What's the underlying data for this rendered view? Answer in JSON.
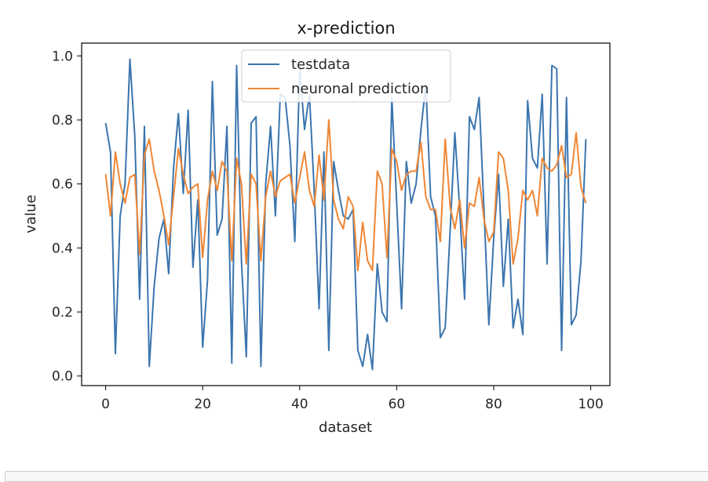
{
  "chart_data": {
    "type": "line",
    "title": "x-prediction",
    "xlabel": "dataset",
    "ylabel": "value",
    "xlim": [
      -4.95,
      103.95
    ],
    "ylim": [
      -0.03,
      1.04
    ],
    "xticks": [
      0,
      20,
      40,
      60,
      80,
      100
    ],
    "yticks": [
      0.0,
      0.2,
      0.4,
      0.6,
      0.8,
      1.0
    ],
    "xtick_labels": [
      "0",
      "20",
      "40",
      "60",
      "80",
      "100"
    ],
    "ytick_labels": [
      "0.0",
      "0.2",
      "0.4",
      "0.6",
      "0.8",
      "1.0"
    ],
    "grid": false,
    "legend_position": "top-center",
    "series": [
      {
        "name": "testdata",
        "color": "#3b75af",
        "x": [
          0,
          1,
          2,
          3,
          4,
          5,
          6,
          7,
          8,
          9,
          10,
          11,
          12,
          13,
          14,
          15,
          16,
          17,
          18,
          19,
          20,
          21,
          22,
          23,
          24,
          25,
          26,
          27,
          28,
          29,
          30,
          31,
          32,
          33,
          34,
          35,
          36,
          37,
          38,
          39,
          40,
          41,
          42,
          43,
          44,
          45,
          46,
          47,
          48,
          49,
          50,
          51,
          52,
          53,
          54,
          55,
          56,
          57,
          58,
          59,
          60,
          61,
          62,
          63,
          64,
          65,
          66,
          67,
          68,
          69,
          70,
          71,
          72,
          73,
          74,
          75,
          76,
          77,
          78,
          79,
          80,
          81,
          82,
          83,
          84,
          85,
          86,
          87,
          88,
          89,
          90,
          91,
          92,
          93,
          94,
          95,
          96,
          97,
          98,
          99
        ],
        "values": [
          0.79,
          0.7,
          0.07,
          0.5,
          0.6,
          0.99,
          0.75,
          0.24,
          0.78,
          0.03,
          0.28,
          0.43,
          0.49,
          0.32,
          0.65,
          0.82,
          0.57,
          0.83,
          0.34,
          0.55,
          0.09,
          0.3,
          0.92,
          0.44,
          0.49,
          0.78,
          0.04,
          0.97,
          0.36,
          0.06,
          0.79,
          0.81,
          0.03,
          0.6,
          0.78,
          0.5,
          0.88,
          0.87,
          0.72,
          0.42,
          0.96,
          0.77,
          0.88,
          0.58,
          0.21,
          0.7,
          0.08,
          0.67,
          0.58,
          0.5,
          0.49,
          0.52,
          0.08,
          0.03,
          0.13,
          0.02,
          0.35,
          0.2,
          0.17,
          0.87,
          0.54,
          0.21,
          0.67,
          0.54,
          0.6,
          0.77,
          0.91,
          0.56,
          0.5,
          0.12,
          0.15,
          0.45,
          0.76,
          0.52,
          0.24,
          0.81,
          0.77,
          0.87,
          0.52,
          0.16,
          0.43,
          0.63,
          0.28,
          0.49,
          0.15,
          0.24,
          0.13,
          0.86,
          0.68,
          0.65,
          0.88,
          0.35,
          0.97,
          0.96,
          0.08,
          0.87,
          0.16,
          0.19,
          0.36,
          0.74
        ]
      },
      {
        "name": "neuronal prediction",
        "color": "#ef8635",
        "x": [
          0,
          1,
          2,
          3,
          4,
          5,
          6,
          7,
          8,
          9,
          10,
          11,
          12,
          13,
          14,
          15,
          16,
          17,
          18,
          19,
          20,
          21,
          22,
          23,
          24,
          25,
          26,
          27,
          28,
          29,
          30,
          31,
          32,
          33,
          34,
          35,
          36,
          37,
          38,
          39,
          40,
          41,
          42,
          43,
          44,
          45,
          46,
          47,
          48,
          49,
          50,
          51,
          52,
          53,
          54,
          55,
          56,
          57,
          58,
          59,
          60,
          61,
          62,
          63,
          64,
          65,
          66,
          67,
          68,
          69,
          70,
          71,
          72,
          73,
          74,
          75,
          76,
          77,
          78,
          79,
          80,
          81,
          82,
          83,
          84,
          85,
          86,
          87,
          88,
          89,
          90,
          91,
          92,
          93,
          94,
          95,
          96,
          97,
          98,
          99
        ],
        "values": [
          0.63,
          0.5,
          0.7,
          0.6,
          0.54,
          0.62,
          0.63,
          0.38,
          0.69,
          0.74,
          0.64,
          0.58,
          0.5,
          0.41,
          0.56,
          0.71,
          0.63,
          0.57,
          0.59,
          0.6,
          0.37,
          0.55,
          0.64,
          0.58,
          0.67,
          0.64,
          0.36,
          0.68,
          0.6,
          0.35,
          0.63,
          0.6,
          0.36,
          0.56,
          0.64,
          0.56,
          0.61,
          0.62,
          0.63,
          0.54,
          0.62,
          0.7,
          0.58,
          0.53,
          0.69,
          0.55,
          0.8,
          0.55,
          0.49,
          0.46,
          0.56,
          0.53,
          0.33,
          0.48,
          0.36,
          0.33,
          0.64,
          0.6,
          0.37,
          0.71,
          0.67,
          0.58,
          0.63,
          0.64,
          0.64,
          0.73,
          0.56,
          0.52,
          0.52,
          0.42,
          0.74,
          0.53,
          0.46,
          0.55,
          0.4,
          0.54,
          0.53,
          0.62,
          0.49,
          0.42,
          0.45,
          0.7,
          0.68,
          0.58,
          0.35,
          0.43,
          0.58,
          0.55,
          0.58,
          0.5,
          0.68,
          0.65,
          0.64,
          0.66,
          0.72,
          0.62,
          0.63,
          0.76,
          0.59,
          0.54
        ]
      }
    ]
  }
}
